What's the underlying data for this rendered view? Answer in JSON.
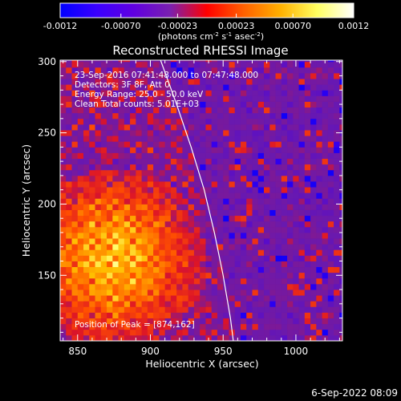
{
  "chart_data": {
    "type": "heatmap",
    "title": "Reconstructed RHESSI Image",
    "xlabel": "Heliocentric X (arcsec)",
    "ylabel": "Heliocentric Y (arcsec)",
    "xlim": [
      838,
      1032
    ],
    "ylim": [
      104,
      301
    ],
    "x_ticks": [
      850,
      900,
      950,
      1000
    ],
    "y_ticks": [
      150,
      200,
      250,
      300
    ],
    "grid": false,
    "colorbar": {
      "ticks": [
        "-0.0012",
        "-0.00070",
        "-0.00023",
        "0.00023",
        "0.00070",
        "0.0012"
      ],
      "unit_text": [
        "(photons cm",
        "-2",
        " s",
        "-1",
        " asec",
        "-2",
        ")"
      ],
      "colors": [
        "#0000ff",
        "#3a00ff",
        "#6000e0",
        "#7a20b0",
        "#ff0000",
        "#ff6000",
        "#ffb000",
        "#ffff60",
        "#ffffff"
      ]
    },
    "annotations": [
      "23-Sep-2016 07:41:48.000 to 07:47:48.000",
      "Detectors: 3F 8F, Att 0",
      "Energy Range: 25.0 - 50.0 keV",
      "Clean      Total counts: 5.01E+03"
    ],
    "peak_text": "Position of Peak = [874,162]",
    "limb_points": [
      [
        907,
        301
      ],
      [
        918,
        270
      ],
      [
        928,
        240
      ],
      [
        937,
        210
      ],
      [
        944,
        180
      ],
      [
        950,
        150
      ],
      [
        955,
        120
      ],
      [
        957,
        104
      ]
    ]
  },
  "footer": {
    "date": "6-Sep-2022 08:09"
  }
}
